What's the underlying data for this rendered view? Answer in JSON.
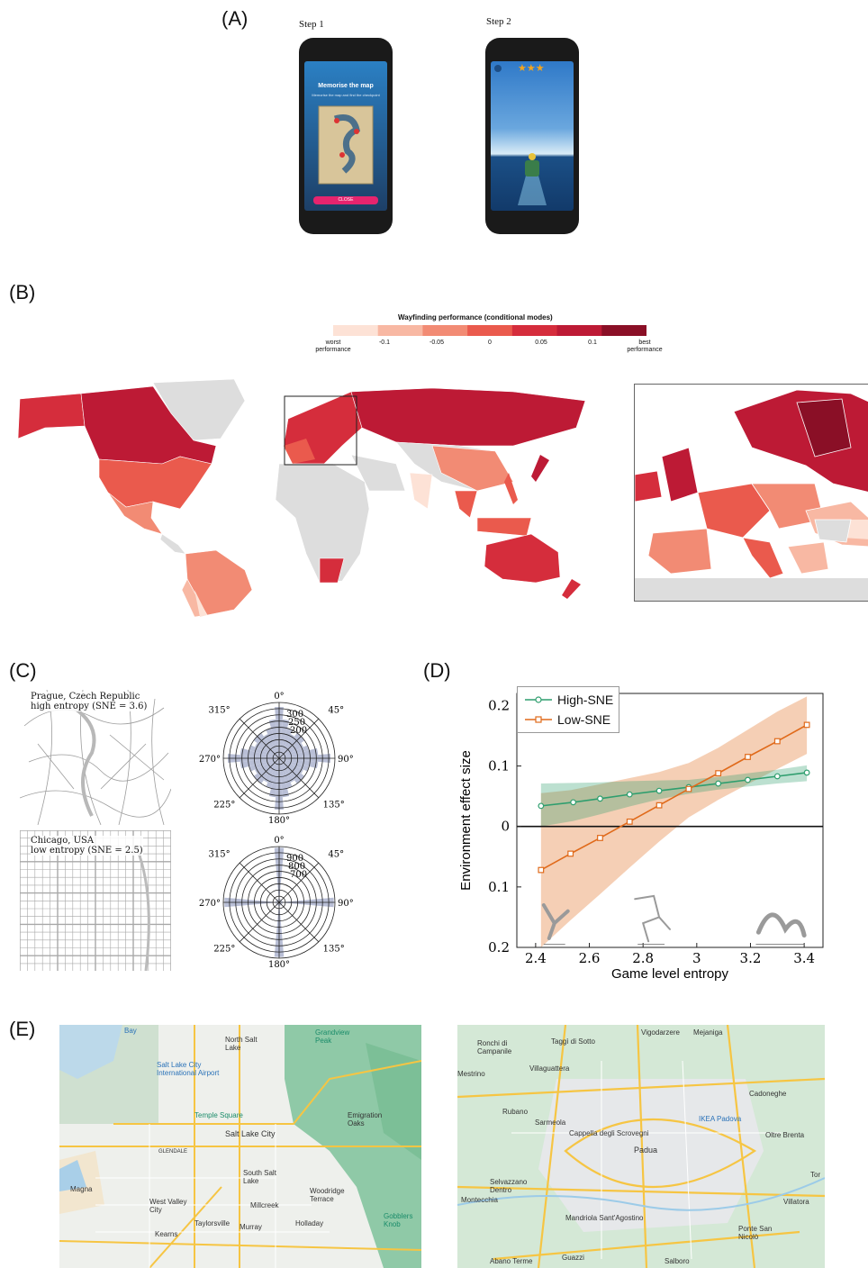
{
  "panels": {
    "a": "(A)",
    "b": "(B)",
    "c": "(C)",
    "d": "(D)",
    "e": "(E)"
  },
  "panel_a": {
    "step1": "Step 1",
    "step2": "Step 2",
    "phone1_title": "Memorise the map",
    "phone1_sub": "Memorise the map and find the checkpoint",
    "phone1_button": "CLOSE",
    "phone2_stars": "★★★"
  },
  "panel_b": {
    "colorbar_title": "Wayfinding performance (conditional modes)",
    "colorbar_colors": [
      "#fde2d6",
      "#f8b8a3",
      "#f28b74",
      "#ea5a4d",
      "#d52d3c",
      "#bd1a35",
      "#8a0f26"
    ],
    "ticks": [
      "-0.1",
      "-0.05",
      "0",
      "0.05",
      "0.1"
    ],
    "worst": [
      "worst",
      "performance"
    ],
    "best": [
      "best",
      "performance"
    ]
  },
  "panel_c": {
    "prague_title": "Prague, Czech Republic",
    "prague_sub": "high entropy (SNE = 3.6)",
    "chicago_title": "Chicago, USA",
    "chicago_sub": "low entropy (SNE = 2.5)",
    "angles": [
      "0°",
      "45°",
      "90°",
      "135°",
      "180°",
      "225°",
      "270°",
      "315°"
    ],
    "prague_rings": [
      "300",
      "250",
      "200"
    ],
    "chicago_rings": [
      "900",
      "800",
      "700"
    ]
  },
  "chart_data": {
    "type": "line",
    "xlabel": "Game level entropy",
    "ylabel": "Environment effect size",
    "xlim": [
      2.33,
      3.47
    ],
    "ylim": [
      -0.2,
      0.22
    ],
    "xticks": [
      "2.4",
      "2.6",
      "2.8",
      "3",
      "3.2",
      "3.4"
    ],
    "yticks": [
      "0.2",
      "0.1",
      "0",
      "0.1",
      "0.2"
    ],
    "series": [
      {
        "name": "High-SNE",
        "color": "#2e9e6e",
        "x": [
          2.42,
          2.54,
          2.64,
          2.75,
          2.86,
          2.97,
          3.08,
          3.19,
          3.3,
          3.41
        ],
        "values": [
          0.034,
          0.04,
          0.046,
          0.053,
          0.059,
          0.065,
          0.071,
          0.077,
          0.083,
          0.089
        ],
        "band_lo": [
          0.0,
          0.009,
          0.02,
          0.033,
          0.045,
          0.054,
          0.061,
          0.066,
          0.071,
          0.075
        ],
        "band_hi": [
          0.071,
          0.072,
          0.073,
          0.075,
          0.076,
          0.077,
          0.082,
          0.088,
          0.094,
          0.101
        ]
      },
      {
        "name": "Low-SNE",
        "color": "#e06a1a",
        "x": [
          2.42,
          2.53,
          2.64,
          2.75,
          2.86,
          2.97,
          3.08,
          3.19,
          3.3,
          3.41
        ],
        "values": [
          -0.072,
          -0.045,
          -0.019,
          0.008,
          0.035,
          0.062,
          0.088,
          0.115,
          0.141,
          0.168
        ],
        "band_lo": [
          -0.2,
          -0.155,
          -0.112,
          -0.068,
          -0.025,
          0.015,
          0.044,
          0.07,
          0.095,
          0.12
        ],
        "band_hi": [
          0.055,
          0.06,
          0.07,
          0.08,
          0.09,
          0.105,
          0.13,
          0.16,
          0.19,
          0.215
        ]
      }
    ]
  },
  "panel_e": {
    "slc": [
      "Salt Lake City",
      "Salt Lake City International Airport",
      "Temple Square",
      "North Salt Lake",
      "South Salt Lake",
      "West Valley City",
      "Millcreek",
      "Holladay",
      "Murray",
      "Taylorsville",
      "Kearns",
      "Magna",
      "Emigration Oaks",
      "Woodridge Terrace",
      "Gobblers Knob",
      "Grandview Peak",
      "GLENDALE",
      "Bay"
    ],
    "padua": [
      "Padua",
      "Cappella degli Scrovegni",
      "IKEA Padova",
      "Vigodarzere",
      "Mejaniga",
      "Taggì di Sotto",
      "Ronchi di Campanile",
      "Villaguattera",
      "Mestrino",
      "Rubano",
      "Sarmeola",
      "Cadoneghe",
      "Oltre Brenta",
      "Villatora",
      "Selvazzano Dentro",
      "Montecchia",
      "Mandriola Sant'Agostino",
      "Ponte San Nicolò",
      "Abano Terme",
      "Guazzi",
      "Salboro",
      "Tor"
    ]
  }
}
